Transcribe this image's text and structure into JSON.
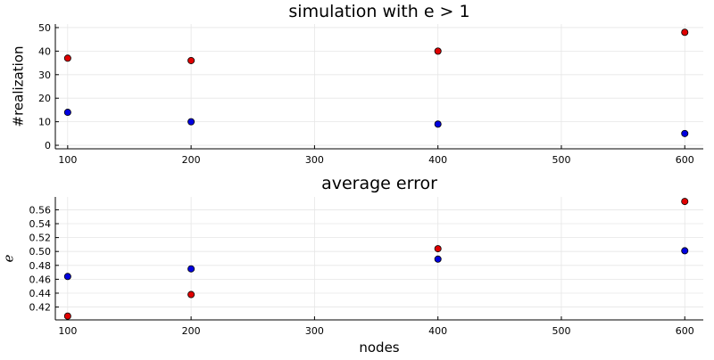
{
  "chart_data": [
    {
      "type": "scatter",
      "title": "simulation with e > 1",
      "xlabel": "",
      "ylabel": "#realization",
      "xlim": [
        90,
        615
      ],
      "ylim": [
        -1.5,
        51.5
      ],
      "xticks": [
        100,
        200,
        300,
        400,
        500,
        600
      ],
      "yticks": [
        0,
        10,
        20,
        30,
        40,
        50
      ],
      "grid": true,
      "legend": "none",
      "series": [
        {
          "color": "#e00000",
          "x": [
            100,
            200,
            400,
            600
          ],
          "y": [
            37,
            36,
            40,
            48
          ]
        },
        {
          "color": "#0000e0",
          "x": [
            100,
            200,
            400,
            600
          ],
          "y": [
            14,
            10,
            9,
            5
          ]
        }
      ]
    },
    {
      "type": "scatter",
      "title": "average error",
      "xlabel": "nodes",
      "ylabel": "e",
      "xlim": [
        90,
        615
      ],
      "ylim": [
        0.4015,
        0.5785
      ],
      "xticks": [
        100,
        200,
        300,
        400,
        500,
        600
      ],
      "yticks": [
        0.42,
        0.44,
        0.46,
        0.48,
        0.5,
        0.52,
        0.54,
        0.56
      ],
      "ytick_labels": [
        "0.42",
        "0.44",
        "0.46",
        "0.48",
        "0.50",
        "0.52",
        "0.54",
        "0.56"
      ],
      "grid": true,
      "legend": "none",
      "series": [
        {
          "color": "#e00000",
          "x": [
            100,
            200,
            400,
            600
          ],
          "y": [
            0.407,
            0.438,
            0.504,
            0.572
          ]
        },
        {
          "color": "#0000e0",
          "x": [
            100,
            200,
            400,
            600
          ],
          "y": [
            0.464,
            0.475,
            0.489,
            0.501
          ]
        }
      ]
    }
  ]
}
